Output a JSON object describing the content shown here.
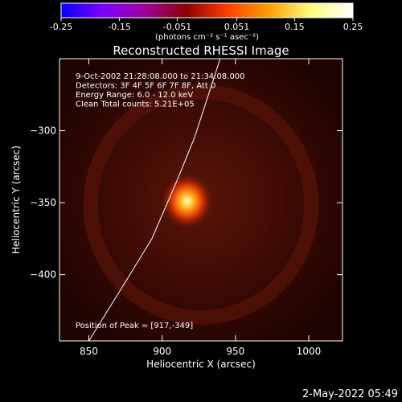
{
  "chart_data": {
    "type": "heatmap",
    "title": "Reconstructed RHESSI Image",
    "xlabel": "Heliocentric X (arcsec)",
    "ylabel": "Heliocentric Y (arcsec)",
    "xlim": [
      830,
      1023
    ],
    "ylim": [
      -446,
      -250
    ],
    "xticks": [
      850,
      900,
      950,
      1000
    ],
    "yticks": [
      -300,
      -350,
      -400
    ],
    "colorbar": {
      "range": [
        -0.25,
        0.25
      ],
      "ticks": [
        "-0.25",
        "-0.15",
        "-0.051",
        "0.051",
        "0.15",
        "0.25"
      ],
      "unit_label": "(photons cm⁻² s⁻¹ asec⁻²)",
      "colormap": [
        "#0000ff",
        "#8000ff",
        "#a000a0",
        "#8b0000",
        "#ff4000",
        "#ffa000",
        "#ffff80",
        "#ffffff"
      ]
    },
    "annotations": [
      "9-Oct-2002 21:28:08.000 to 21:34:08.000",
      "Detectors: 3F 4F 5F 6F 7F 8F, Att 0",
      "Energy Range: 6.0 - 12.0 keV",
      "Clean    Total counts: 5.21E+05"
    ],
    "peak_label": "Position of Peak = [917,-349]",
    "peak": {
      "x": 917,
      "y": -349
    },
    "limb": [
      [
        850,
        -446
      ],
      [
        875,
        -405
      ],
      [
        893,
        -375
      ],
      [
        910,
        -335
      ],
      [
        922,
        -305
      ],
      [
        938,
        -255
      ],
      [
        944,
        -235
      ]
    ],
    "timestamp": "2-May-2022 05:49"
  }
}
